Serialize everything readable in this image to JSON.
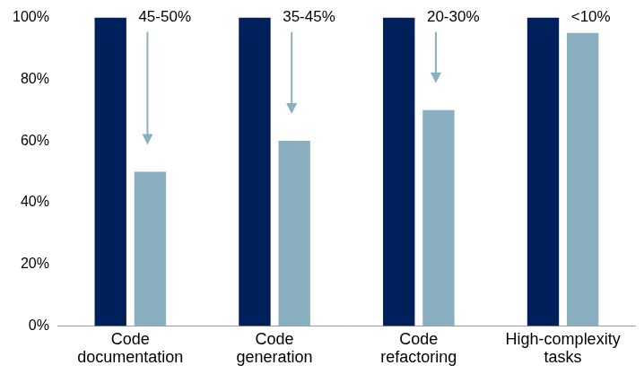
{
  "chart_data": {
    "type": "bar",
    "categories": [
      "Code documentation",
      "Code generation",
      "Code refactoring",
      "High-complexity tasks"
    ],
    "series": [
      {
        "color": "#00205b",
        "values": [
          100,
          100,
          100,
          100
        ]
      },
      {
        "color": "#8aafc1",
        "values": [
          50,
          60,
          70,
          95
        ]
      }
    ],
    "annotations": [
      "45-50%",
      "35-45%",
      "20-30%",
      "<10%"
    ],
    "ylim": [
      0,
      100
    ],
    "yticks": [
      {
        "value": 0,
        "label": "0%"
      },
      {
        "value": 20,
        "label": "20%"
      },
      {
        "value": 40,
        "label": "40%"
      },
      {
        "value": 60,
        "label": "60%"
      },
      {
        "value": 80,
        "label": "80%"
      },
      {
        "value": 100,
        "label": "100%"
      }
    ],
    "grid": false
  }
}
